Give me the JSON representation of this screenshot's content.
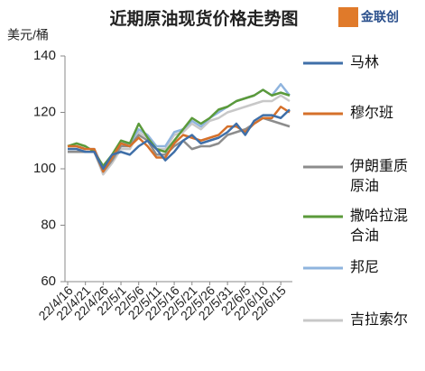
{
  "chart_data": {
    "type": "line",
    "title": "近期原油现货价格走势图",
    "y_label": "美元/桶",
    "logo": "金联创",
    "categories": [
      "22/4/16",
      null,
      "22/4/21",
      null,
      "22/4/26",
      null,
      "22/5/1",
      null,
      "22/5/6",
      null,
      "22/5/11",
      null,
      "22/5/16",
      null,
      "22/5/21",
      null,
      "22/5/26",
      null,
      "22/5/31",
      null,
      "22/6/5",
      null,
      "22/6/10",
      null,
      "22/6/15",
      null
    ],
    "ylim": [
      60,
      140
    ],
    "yticks": [
      60,
      80,
      100,
      120,
      140
    ],
    "grid": false,
    "series": [
      {
        "name": "马林",
        "color": "#3f6fa8",
        "values": [
          107,
          107,
          106,
          106,
          100,
          105,
          106,
          105,
          108,
          110,
          107,
          103,
          106,
          110,
          112,
          109,
          110,
          111,
          113,
          116,
          112,
          117,
          119,
          119,
          118,
          121
        ]
      },
      {
        "name": "穆尔班",
        "color": "#d5702a",
        "values": [
          108,
          108,
          107,
          107,
          99,
          104,
          109,
          108,
          111,
          108,
          104,
          104,
          109,
          112,
          111,
          110,
          111,
          112,
          115,
          115,
          113,
          116,
          118,
          118,
          122,
          120
        ]
      },
      {
        "name": "伊朗重质原油",
        "color": "#8c8c8c",
        "values": [
          106,
          106,
          106,
          106,
          99,
          103,
          108,
          108,
          112,
          110,
          105,
          105,
          108,
          110,
          107,
          108,
          108,
          109,
          112,
          113,
          114,
          116,
          118,
          117,
          116,
          115
        ]
      },
      {
        "name": "撒哈拉混合油",
        "color": "#5b9a3a",
        "values": [
          108,
          109,
          108,
          106,
          101,
          105,
          110,
          109,
          116,
          111,
          107,
          106,
          110,
          114,
          118,
          116,
          118,
          121,
          122,
          124,
          125,
          126,
          128,
          126,
          127,
          126
        ]
      },
      {
        "name": "邦尼",
        "color": "#8fb4de",
        "values": [
          108,
          108,
          107,
          107,
          100,
          104,
          109,
          109,
          114,
          112,
          108,
          108,
          113,
          114,
          117,
          115,
          118,
          120,
          122,
          124,
          125,
          126,
          128,
          126,
          130,
          126
        ]
      },
      {
        "name": "吉拉索尔",
        "color": "#c8c8c8",
        "values": [
          107,
          107,
          106,
          106,
          98,
          102,
          107,
          107,
          113,
          111,
          107,
          107,
          112,
          113,
          116,
          114,
          117,
          118,
          120,
          121,
          122,
          123,
          124,
          124,
          126,
          124
        ]
      }
    ]
  }
}
